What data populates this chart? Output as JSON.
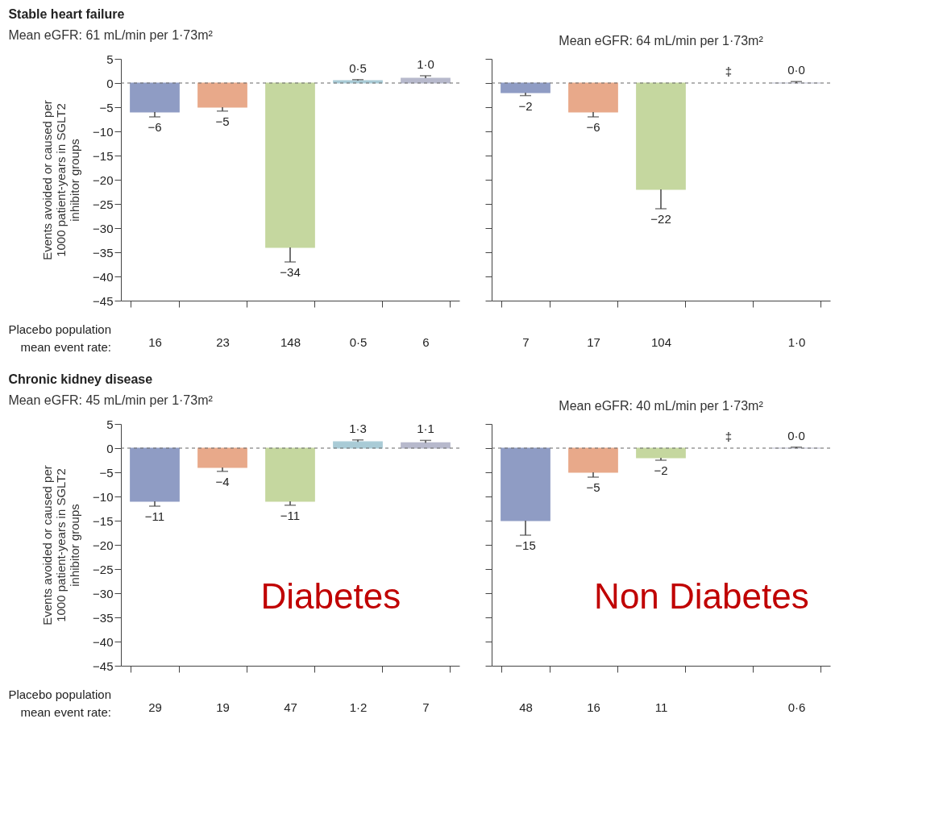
{
  "chart_data": [
    {
      "type": "bar",
      "title": "Stable heart failure",
      "subtitle": "Mean eGFR: 61 mL/min per 1·73m²",
      "ylabel": "Events avoided or caused per 1000 patient-years in SGLT2 inhibitor groups",
      "xlabel": "Placebo population mean event rate:",
      "categories": [
        "16",
        "23",
        "148",
        "0·5",
        "6"
      ],
      "values": [
        -6,
        -5,
        -34,
        0.5,
        1.0
      ],
      "value_labels": [
        "−6",
        "−5",
        "−34",
        "0·5",
        "1·0"
      ],
      "errors": [
        [
          -7,
          -6
        ],
        [
          -5.8,
          -5
        ],
        [
          -37,
          -34
        ],
        [
          0.5,
          0.7
        ],
        [
          1.0,
          1.5
        ]
      ],
      "colors": [
        "#8f9cc4",
        "#e8a98a",
        "#c5d79f",
        "#a9cbd6",
        "#b7b9cc"
      ],
      "ylim": [
        -45,
        5
      ],
      "yticks": [
        -45,
        -40,
        -35,
        -30,
        -25,
        -20,
        -15,
        -10,
        -5,
        0,
        5
      ],
      "ref_lines": [
        {
          "axis": "y",
          "value": 0,
          "line_style": "dashed"
        }
      ]
    },
    {
      "type": "bar",
      "subtitle": "Mean eGFR: 64 mL/min per 1·73m²",
      "categories": [
        "7",
        "17",
        "104",
        null,
        "1·0"
      ],
      "values": [
        -2,
        -6,
        -22,
        null,
        0.0
      ],
      "value_labels": [
        "−2",
        "−6",
        "−22",
        "‡",
        "0·0"
      ],
      "errors": [
        [
          -2.6,
          -2
        ],
        [
          -7,
          -6
        ],
        [
          -26,
          -22
        ],
        null,
        [
          0,
          0.3
        ]
      ],
      "colors": [
        "#8f9cc4",
        "#e8a98a",
        "#c5d79f",
        "#a9cbd6",
        "#b7b9cc"
      ],
      "ylim": [
        -45,
        5
      ],
      "yticks": [
        -45,
        -40,
        -35,
        -30,
        -25,
        -20,
        -15,
        -10,
        -5,
        0,
        5
      ],
      "tick_labels": "x",
      "ref_lines": [
        {
          "axis": "y",
          "value": 0,
          "line_style": "dashed"
        }
      ]
    },
    {
      "type": "bar",
      "title": "Chronic kidney disease",
      "subtitle": "Mean eGFR: 45 mL/min per 1·73m²",
      "ylabel": "Events avoided or caused per 1000 patient-years in SGLT2 inhibitor groups",
      "xlabel": "Placebo population mean event rate:",
      "categories": [
        "29",
        "19",
        "47",
        "1·2",
        "7"
      ],
      "values": [
        -11,
        -4,
        -11,
        1.3,
        1.1
      ],
      "value_labels": [
        "−11",
        "−4",
        "−11",
        "1·3",
        "1·1"
      ],
      "errors": [
        [
          -12,
          -11
        ],
        [
          -4.8,
          -4
        ],
        [
          -11.8,
          -11
        ],
        [
          1.3,
          1.7
        ],
        [
          1.1,
          1.6
        ]
      ],
      "colors": [
        "#8f9cc4",
        "#e8a98a",
        "#c5d79f",
        "#a9cbd6",
        "#b7b9cc"
      ],
      "ylim": [
        -45,
        5
      ],
      "yticks": [
        -45,
        -40,
        -35,
        -30,
        -25,
        -20,
        -15,
        -10,
        -5,
        0,
        5
      ],
      "ref_lines": [
        {
          "axis": "y",
          "value": 0,
          "line_style": "dashed"
        }
      ],
      "annotations": [
        "Diabetes"
      ]
    },
    {
      "type": "bar",
      "subtitle": "Mean eGFR: 40 mL/min per 1·73m²",
      "categories": [
        "48",
        "16",
        "11",
        null,
        "0·6"
      ],
      "values": [
        -15,
        -5,
        -2,
        null,
        0.0
      ],
      "value_labels": [
        "−15",
        "−5",
        "−2",
        "‡",
        "0·0"
      ],
      "errors": [
        [
          -18,
          -15
        ],
        [
          -6,
          -5
        ],
        [
          -2.5,
          -2
        ],
        null,
        [
          0,
          0.2
        ]
      ],
      "colors": [
        "#8f9cc4",
        "#e8a98a",
        "#c5d79f",
        "#a9cbd6",
        "#b7b9cc"
      ],
      "ylim": [
        -45,
        5
      ],
      "yticks": [
        -45,
        -40,
        -35,
        -30,
        -25,
        -20,
        -15,
        -10,
        -5,
        0,
        5
      ],
      "tick_labels": "x",
      "ref_lines": [
        {
          "axis": "y",
          "value": 0,
          "line_style": "dashed"
        }
      ],
      "annotations": [
        "Non Diabetes"
      ]
    }
  ]
}
